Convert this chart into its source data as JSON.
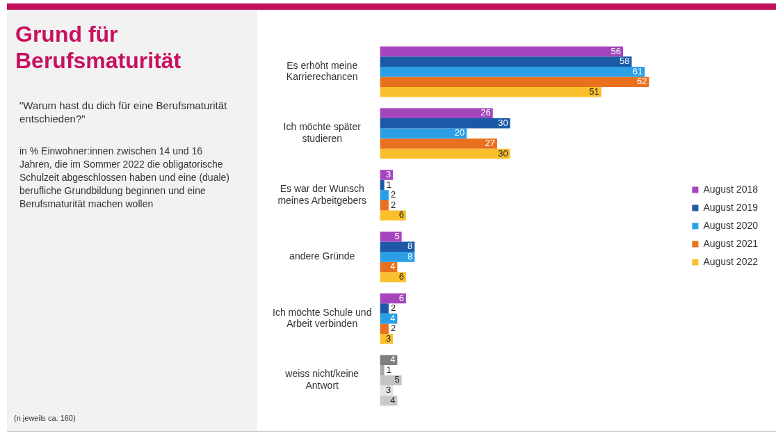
{
  "chart_data": {
    "type": "bar",
    "orientation": "horizontal",
    "title": "Grund für Berufsmaturität",
    "subtitle": "\"Warum hast du dich für eine Berufsmaturität entschieden?\"",
    "annotations": [
      "in % Einwohner:innen zwischen 14 und 16 Jahren, die im Sommer 2022 die obligatorische Schulzeit abgeschlossen haben und eine (duale) berufliche Grundbildung beginnen und eine Berufsmaturität machen wollen",
      "(n jeweils ca. 160)"
    ],
    "categories": [
      "Es erhöht meine Karrierechancen",
      "Ich möchte später studieren",
      "Es war der Wunsch meines Arbeitgebers",
      "andere Gründe",
      "Ich möchte Schule und Arbeit verbinden",
      "weiss nicht/keine Antwort"
    ],
    "series": [
      {
        "name": "August 2018",
        "color": "#a445be",
        "colors": [
          "#a445be",
          "#a445be",
          "#a445be",
          "#a445be",
          "#a445be",
          "#7f7f7f"
        ],
        "values": [
          56,
          26,
          3,
          5,
          6,
          4
        ]
      },
      {
        "name": "August 2019",
        "color": "#1c5aa8",
        "colors": [
          "#1c5aa8",
          "#1c5aa8",
          "#1c5aa8",
          "#1c5aa8",
          "#1c5aa8",
          "#a6a6a6"
        ],
        "values": [
          58,
          30,
          1,
          8,
          2,
          1
        ]
      },
      {
        "name": "August 2020",
        "color": "#2a9fe6",
        "colors": [
          "#2a9fe6",
          "#2a9fe6",
          "#2a9fe6",
          "#2a9fe6",
          "#2a9fe6",
          "#c4c4c4"
        ],
        "values": [
          61,
          20,
          2,
          8,
          4,
          5
        ]
      },
      {
        "name": "August 2021",
        "color": "#e8701e",
        "colors": [
          "#e8701e",
          "#e8701e",
          "#e8701e",
          "#e8701e",
          "#e8701e",
          "#e3e3e3"
        ],
        "values": [
          62,
          27,
          2,
          4,
          2,
          3
        ]
      },
      {
        "name": "August 2022",
        "color": "#f9bf2c",
        "colors": [
          "#f9bf2c",
          "#f9bf2c",
          "#f9bf2c",
          "#f9bf2c",
          "#f9bf2c",
          "#c9c9c9"
        ],
        "values": [
          51,
          30,
          6,
          6,
          3,
          4
        ]
      }
    ],
    "data_labels": true,
    "legend": "right",
    "grid": false
  }
}
